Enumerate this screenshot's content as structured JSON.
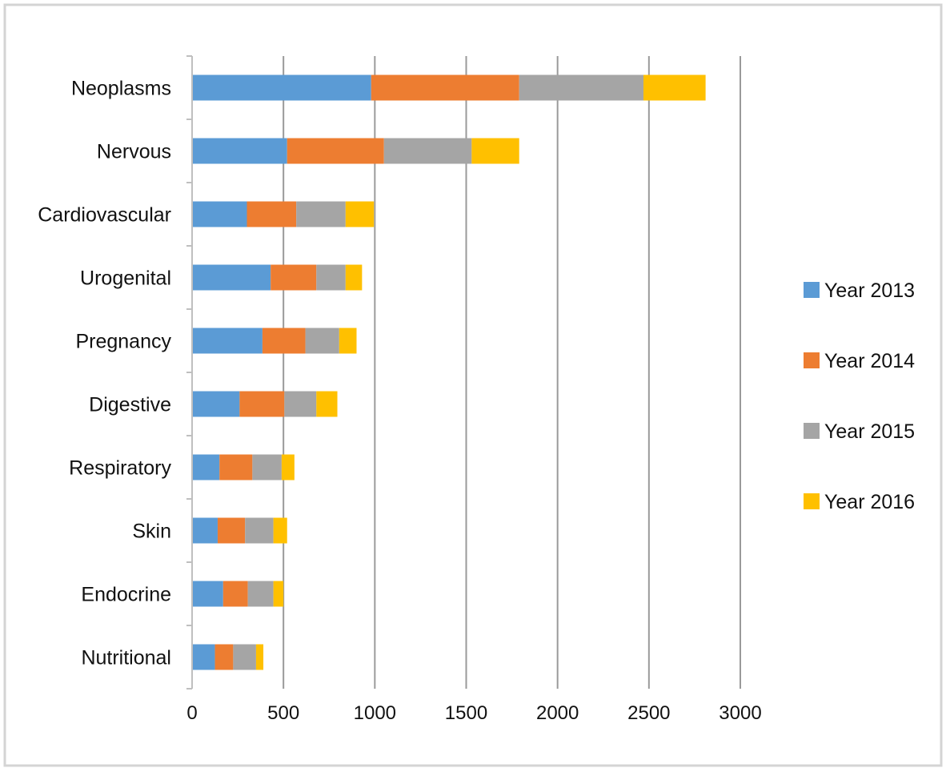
{
  "chart_data": {
    "type": "bar",
    "orientation": "horizontal",
    "stacked": true,
    "title": "",
    "xlabel": "",
    "ylabel": "",
    "categories": [
      "Neoplasms",
      "Nervous",
      "Cardiovascular",
      "Urogenital",
      "Pregnancy",
      "Digestive",
      "Respiratory",
      "Skin",
      "Endocrine",
      "Nutritional"
    ],
    "series": [
      {
        "name": "Year 2013",
        "color": "#5b9bd5",
        "values": [
          980,
          520,
          300,
          430,
          385,
          260,
          150,
          140,
          170,
          125
        ]
      },
      {
        "name": "Year 2014",
        "color": "#ed7d31",
        "values": [
          810,
          530,
          270,
          250,
          235,
          245,
          180,
          150,
          135,
          100
        ]
      },
      {
        "name": "Year 2015",
        "color": "#a5a5a5",
        "values": [
          680,
          480,
          270,
          160,
          185,
          175,
          160,
          155,
          140,
          125
        ]
      },
      {
        "name": "Year 2016",
        "color": "#ffc000",
        "values": [
          340,
          260,
          155,
          90,
          95,
          115,
          70,
          75,
          55,
          40
        ]
      }
    ],
    "xlim": [
      0,
      3000
    ],
    "xticks": [
      "0",
      "500",
      "1000",
      "1500",
      "2000",
      "2500",
      "3000"
    ],
    "grid": "vertical-major",
    "legend_position": "right"
  }
}
